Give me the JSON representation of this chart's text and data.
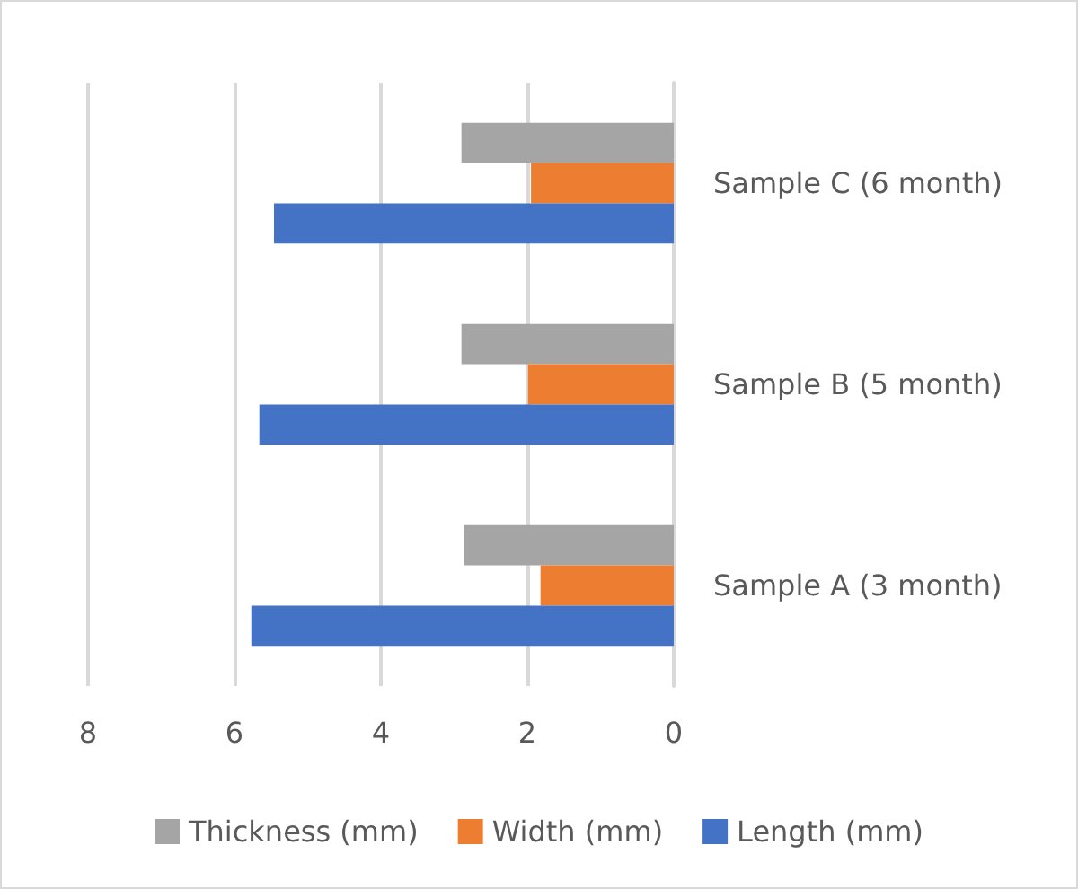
{
  "chart_data": {
    "type": "bar",
    "orientation": "horizontal",
    "categories": [
      "Sample C (6 month)",
      "Sample B (5 month)",
      "Sample A (3 month)"
    ],
    "series": [
      {
        "name": "Thickness (mm)",
        "color": "#a5a5a5",
        "values": [
          2.9,
          2.9,
          2.86
        ]
      },
      {
        "name": "Width (mm)",
        "color": "#ed7d31",
        "values": [
          1.95,
          1.99,
          1.82
        ]
      },
      {
        "name": "Length (mm)",
        "color": "#4472c4",
        "values": [
          5.46,
          5.66,
          5.77
        ]
      }
    ],
    "xlim": [
      8,
      0
    ],
    "xticks": [
      0,
      2,
      4,
      6,
      8
    ],
    "grid": "x",
    "legend": "bottom"
  }
}
